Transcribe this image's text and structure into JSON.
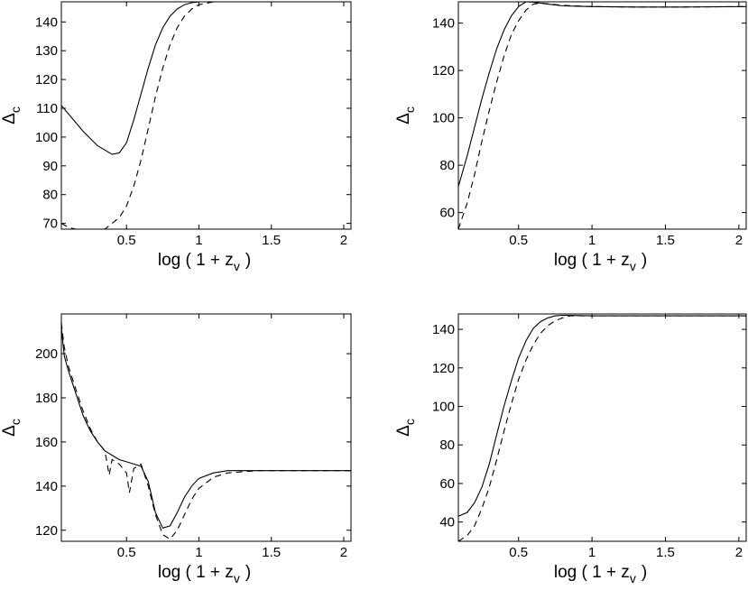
{
  "chart_data": [
    {
      "type": "line",
      "title": "",
      "xlabel": "log ( 1 + z",
      "xlabel_sub": "v",
      "xlabel_close": ")",
      "ylabel": "Δ",
      "ylabel_sub": "c",
      "xlim": [
        0.05,
        2.05
      ],
      "ylim": [
        68,
        147
      ],
      "xticks": [
        0.5,
        1,
        1.5,
        2
      ],
      "xtick_labels": [
        "0.5",
        "1",
        "1.5",
        "2"
      ],
      "yticks": [
        70,
        80,
        90,
        100,
        110,
        120,
        130,
        140
      ],
      "ytick_labels": [
        "70",
        "80",
        "90",
        "100",
        "110",
        "120",
        "130",
        "140"
      ],
      "grid": false,
      "series": [
        {
          "style": "solid",
          "x": [
            0.05,
            0.1,
            0.2,
            0.3,
            0.4,
            0.45,
            0.5,
            0.55,
            0.6,
            0.65,
            0.7,
            0.75,
            0.8,
            0.85,
            0.9,
            0.95,
            1.0,
            1.1,
            1.3,
            1.5,
            2.05
          ],
          "y": [
            111,
            108,
            102,
            97,
            94,
            94.5,
            98,
            106,
            115,
            124,
            132,
            138,
            142,
            144.5,
            146,
            146.7,
            147,
            147,
            147,
            147,
            147
          ]
        },
        {
          "style": "dashed",
          "x": [
            0.05,
            0.1,
            0.15,
            0.25,
            0.35,
            0.45,
            0.5,
            0.55,
            0.6,
            0.65,
            0.7,
            0.75,
            0.8,
            0.85,
            0.9,
            0.95,
            1.0,
            1.1,
            1.3,
            1.5,
            2.05
          ],
          "y": [
            70,
            68.6,
            68,
            67.8,
            68,
            72,
            76,
            83,
            92,
            103,
            114,
            124,
            132,
            138,
            142,
            144.5,
            146,
            147,
            147,
            147,
            147
          ]
        }
      ]
    },
    {
      "type": "line",
      "title": "",
      "xlabel": "log ( 1 + z",
      "xlabel_sub": "v",
      "xlabel_close": ")",
      "ylabel": "Δ",
      "ylabel_sub": "c",
      "xlim": [
        0.09,
        2.05
      ],
      "ylim": [
        53,
        149
      ],
      "xticks": [
        0.5,
        1,
        1.5,
        2
      ],
      "xtick_labels": [
        "0.5",
        "1",
        "1.5",
        "2"
      ],
      "yticks": [
        60,
        80,
        100,
        120,
        140
      ],
      "ytick_labels": [
        "60",
        "80",
        "100",
        "120",
        "140"
      ],
      "grid": false,
      "series": [
        {
          "style": "solid",
          "x": [
            0.09,
            0.15,
            0.2,
            0.25,
            0.3,
            0.35,
            0.4,
            0.45,
            0.5,
            0.55,
            0.6,
            0.7,
            0.8,
            1.0,
            1.3,
            1.6,
            2.05
          ],
          "y": [
            71,
            84,
            96,
            108,
            119,
            129,
            137,
            143,
            147,
            149,
            148.8,
            148,
            147.3,
            147,
            146.8,
            146.8,
            147
          ]
        },
        {
          "style": "dashed",
          "x": [
            0.09,
            0.15,
            0.2,
            0.25,
            0.3,
            0.35,
            0.4,
            0.45,
            0.5,
            0.55,
            0.6,
            0.65,
            0.8,
            1.0,
            1.3,
            1.6,
            2.05
          ],
          "y": [
            53,
            64,
            76,
            90,
            103,
            115,
            126,
            135,
            141,
            145.5,
            148,
            148.5,
            147.5,
            147,
            146.8,
            146.8,
            147
          ]
        }
      ]
    },
    {
      "type": "line",
      "title": "",
      "xlabel": "log ( 1 + z",
      "xlabel_sub": "v",
      "xlabel_close": ")",
      "ylabel": "Δ",
      "ylabel_sub": "c",
      "xlim": [
        0.05,
        2.05
      ],
      "ylim": [
        115,
        218
      ],
      "xticks": [
        0.5,
        1,
        1.5,
        2
      ],
      "xtick_labels": [
        "0.5",
        "1",
        "1.5",
        "2"
      ],
      "yticks": [
        120,
        140,
        160,
        180,
        200
      ],
      "ytick_labels": [
        "120",
        "140",
        "160",
        "180",
        "200"
      ],
      "grid": false,
      "series": [
        {
          "style": "solid",
          "x": [
            0.05,
            0.07,
            0.1,
            0.15,
            0.2,
            0.25,
            0.3,
            0.35,
            0.4,
            0.45,
            0.5,
            0.55,
            0.6,
            0.65,
            0.7,
            0.75,
            0.8,
            0.85,
            0.9,
            0.95,
            1.0,
            1.1,
            1.2,
            1.4,
            1.6,
            2.05
          ],
          "y": [
            212,
            199,
            192,
            182,
            172,
            165,
            160,
            156,
            154,
            152,
            151,
            150,
            149,
            142,
            128,
            121,
            122,
            128,
            135,
            140,
            143.5,
            146,
            147,
            147,
            147,
            147
          ]
        },
        {
          "style": "dashed",
          "x": [
            0.05,
            0.07,
            0.1,
            0.15,
            0.2,
            0.25,
            0.3,
            0.35,
            0.38,
            0.4,
            0.45,
            0.5,
            0.52,
            0.55,
            0.6,
            0.65,
            0.7,
            0.75,
            0.8,
            0.85,
            0.9,
            0.95,
            1.0,
            1.1,
            1.2,
            1.4,
            1.6,
            2.05
          ],
          "y": [
            214,
            203,
            194,
            184,
            174,
            166,
            160,
            156,
            145,
            152,
            150,
            146,
            137,
            148,
            150,
            140,
            127,
            118,
            116,
            120,
            127,
            134,
            139,
            144,
            146,
            147,
            147,
            147
          ]
        }
      ]
    },
    {
      "type": "line",
      "title": "",
      "xlabel": "log ( 1 + z",
      "xlabel_sub": "v",
      "xlabel_close": ")",
      "ylabel": "Δ",
      "ylabel_sub": "c",
      "xlim": [
        0.09,
        2.05
      ],
      "ylim": [
        30,
        148
      ],
      "xticks": [
        0.5,
        1,
        1.5,
        2
      ],
      "xtick_labels": [
        "0.5",
        "1",
        "1.5",
        "2"
      ],
      "yticks": [
        40,
        60,
        80,
        100,
        120,
        140
      ],
      "ytick_labels": [
        "40",
        "60",
        "80",
        "100",
        "120",
        "140"
      ],
      "grid": false,
      "series": [
        {
          "style": "solid",
          "x": [
            0.09,
            0.15,
            0.2,
            0.25,
            0.3,
            0.35,
            0.4,
            0.45,
            0.5,
            0.55,
            0.6,
            0.65,
            0.7,
            0.75,
            0.8,
            1.0,
            1.5,
            2.05
          ],
          "y": [
            43,
            45,
            50,
            58,
            70,
            85,
            100,
            113,
            125,
            134,
            140.5,
            144,
            146,
            147,
            147.3,
            147,
            147,
            147
          ]
        },
        {
          "style": "dashed",
          "x": [
            0.09,
            0.15,
            0.2,
            0.25,
            0.3,
            0.35,
            0.4,
            0.45,
            0.5,
            0.55,
            0.6,
            0.65,
            0.7,
            0.75,
            0.8,
            0.85,
            1.0,
            1.5,
            2.05
          ],
          "y": [
            30,
            33,
            38,
            47,
            58,
            72,
            87,
            101,
            114,
            124,
            132,
            138,
            142,
            144.5,
            146,
            147,
            147,
            147,
            147
          ]
        }
      ]
    }
  ]
}
